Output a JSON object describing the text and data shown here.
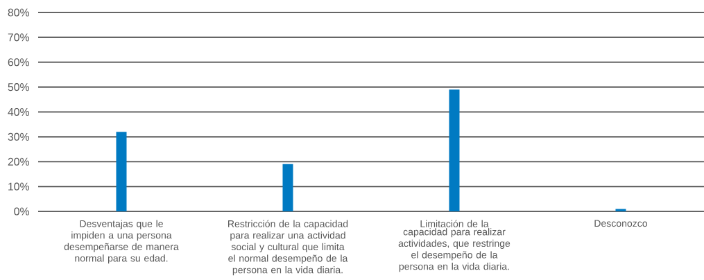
{
  "chart_data": {
    "type": "bar",
    "categories": [
      "Desventajas que le impiden a una persona desempeñarse de manera normal para su edad.",
      "Restricción de la capacidad para realizar una actividad social y cultural que limita el normal desempeño de la persona en la vida diaria.",
      "Limitación de la capacidad para realizar actividades, que restringe el desempeño de la persona en la vida diaria.",
      "Desconozco"
    ],
    "values": [
      32,
      19,
      49,
      1
    ],
    "color": "#007ac2",
    "ylim": [
      0,
      80
    ],
    "yticks": [
      {
        "value": 0,
        "label": "0%"
      },
      {
        "value": 10,
        "label": "10%"
      },
      {
        "value": 20,
        "label": "20%"
      },
      {
        "value": 30,
        "label": "30%"
      },
      {
        "value": 40,
        "label": "40%"
      },
      {
        "value": 50,
        "label": "50%"
      },
      {
        "value": 60,
        "label": "60%"
      },
      {
        "value": 70,
        "label": "70%"
      },
      {
        "value": 80,
        "label": "80%"
      }
    ],
    "grid": "y"
  }
}
